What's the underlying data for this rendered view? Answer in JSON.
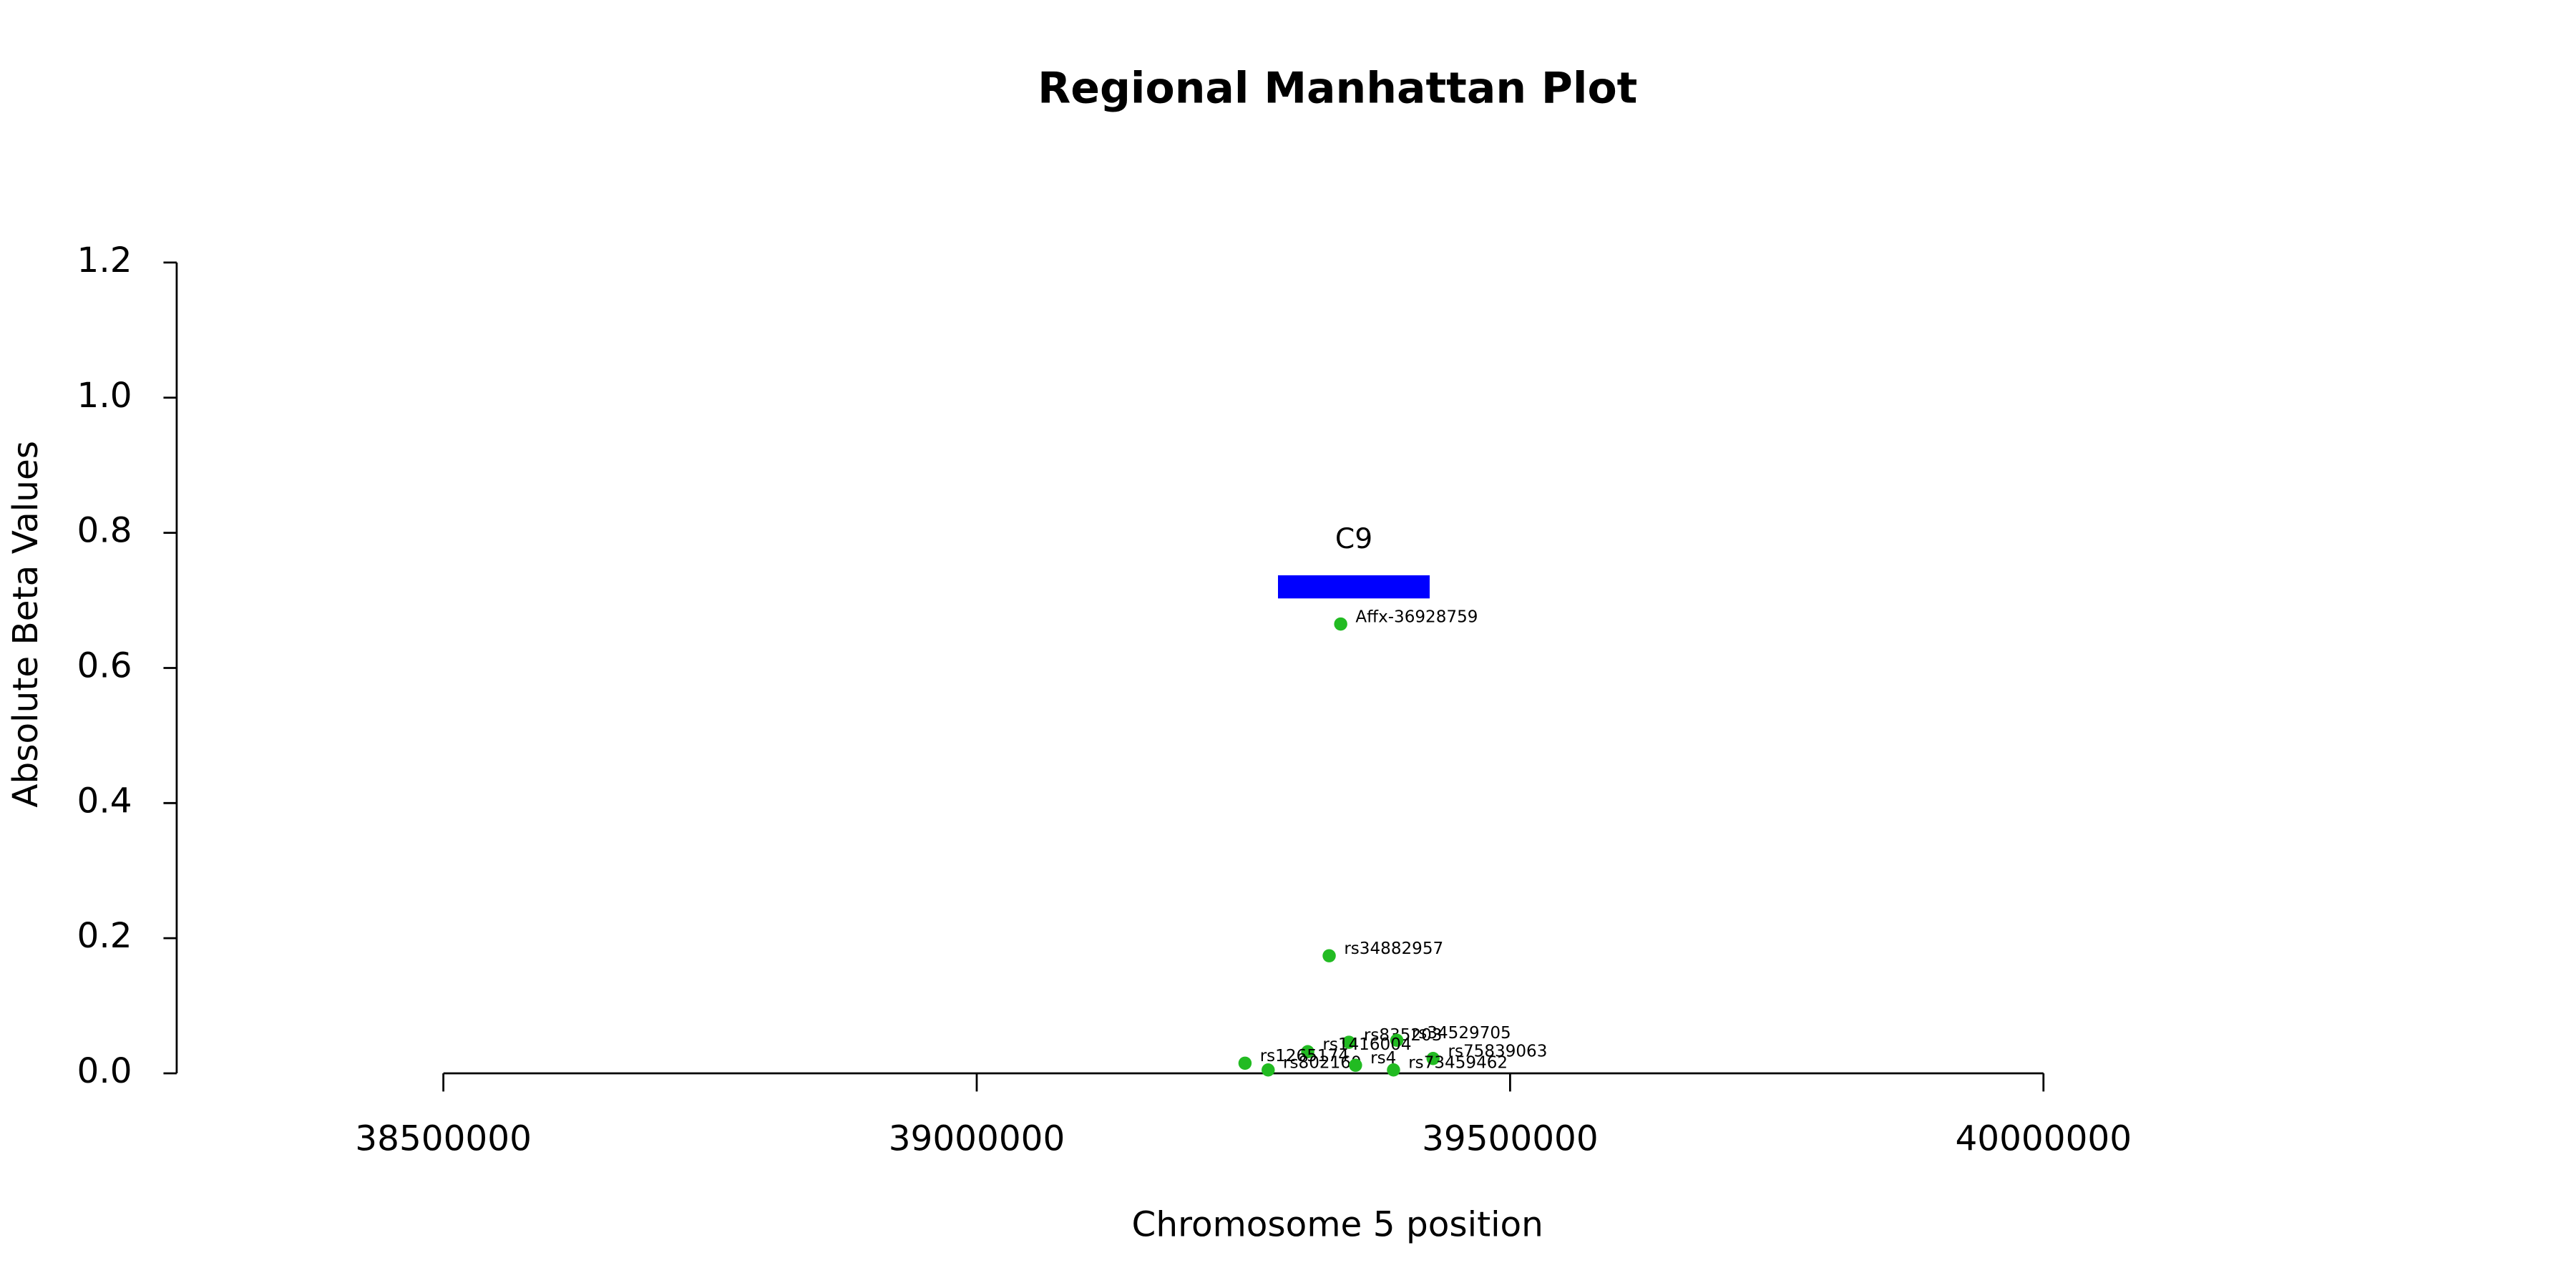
{
  "chart_data": {
    "type": "scatter",
    "title": "Regional Manhattan Plot",
    "x_label": "Chromosome 5 position",
    "y_label": "Absolute Beta Values",
    "x": [
      39341200,
      39330400,
      39348900,
      39393800,
      39310300,
      39251500,
      39273200,
      39427800,
      39390700,
      39355100
    ],
    "values": [
      0.665,
      0.174,
      0.046,
      0.049,
      0.032,
      0.015,
      0.005,
      0.022,
      0.005,
      0.012
    ],
    "point_labels": [
      "Affx-36928759",
      "rs34882957",
      "rs835203",
      "rs34529705",
      "rs1416004",
      "rs1265174",
      "rs802160",
      "rs75839063",
      "rs73459462",
      "rs4"
    ],
    "color": "#22bb22",
    "gene": {
      "label": "C9",
      "start": 39282400,
      "end": 39424600,
      "y": 0.72,
      "color": "#0000ff"
    },
    "xlim": [
      38250000,
      40250000
    ],
    "xticks": [
      38500000,
      39000000,
      39500000,
      40000000
    ],
    "ylim": [
      0,
      1.2
    ],
    "yticks": [
      {
        "value": 0,
        "label": "0.0"
      },
      0.2,
      0.4,
      0.6,
      0.8,
      {
        "value": 1,
        "label": "1.0"
      },
      1.2
    ]
  }
}
